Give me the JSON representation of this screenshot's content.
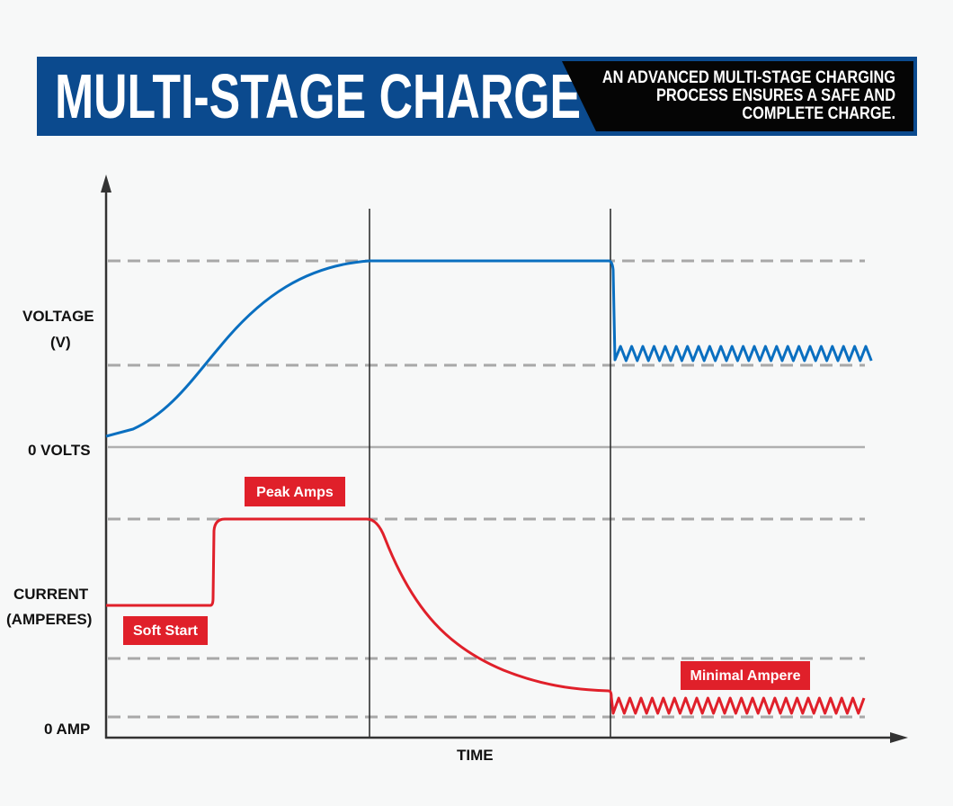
{
  "header": {
    "title": "MULTI-STAGE CHARGE",
    "subtitle_lines": [
      "AN ADVANCED MULTI-STAGE CHARGING",
      "PROCESS ENSURES A SAFE AND",
      "COMPLETE CHARGE."
    ]
  },
  "axes": {
    "voltage_label": [
      "VOLTAGE",
      "(V)"
    ],
    "zero_volts": "0 VOLTS",
    "current_label": [
      "CURRENT",
      "(AMPERES)"
    ],
    "zero_amp": "0 AMP",
    "x_label": "TIME"
  },
  "annotations": {
    "peak": "Peak Amps",
    "soft_start": "Soft Start",
    "minimal": "Minimal Ampere"
  },
  "colors": {
    "banner_blue": "#0b4a8e",
    "voltage_line": "#0a6fc0",
    "current_line": "#e0202a",
    "tag_red": "#e0202a",
    "dashed": "#a8a8a8"
  }
}
